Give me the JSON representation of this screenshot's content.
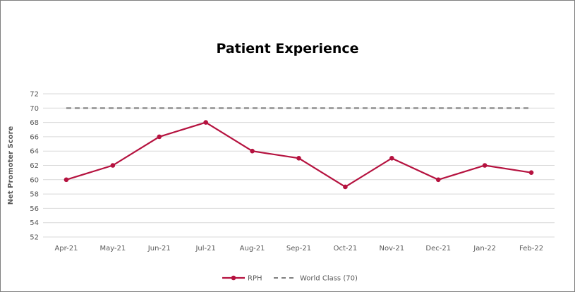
{
  "chart_data": {
    "type": "line",
    "title": "Patient Experience",
    "xlabel": "",
    "ylabel": "Net Promoter Score",
    "ylim": [
      52,
      72
    ],
    "yticks": [
      52,
      54,
      56,
      58,
      60,
      62,
      64,
      66,
      68,
      70,
      72
    ],
    "grid": true,
    "legend_position": "bottom",
    "categories": [
      "Apr-21",
      "May-21",
      "Jun-21",
      "Jul-21",
      "Aug-21",
      "Sep-21",
      "Oct-21",
      "Nov-21",
      "Dec-21",
      "Jan-22",
      "Feb-22"
    ],
    "series": [
      {
        "name": "RPH",
        "values": [
          60,
          62,
          66,
          68,
          64,
          63,
          59,
          63,
          60,
          62,
          61
        ],
        "color": "#b5123f",
        "style": "solid-with-markers"
      },
      {
        "name": "World Class (70)",
        "values": [
          70,
          70,
          70,
          70,
          70,
          70,
          70,
          70,
          70,
          70,
          70
        ],
        "color": "#7f7f7f",
        "style": "dashed"
      }
    ]
  }
}
